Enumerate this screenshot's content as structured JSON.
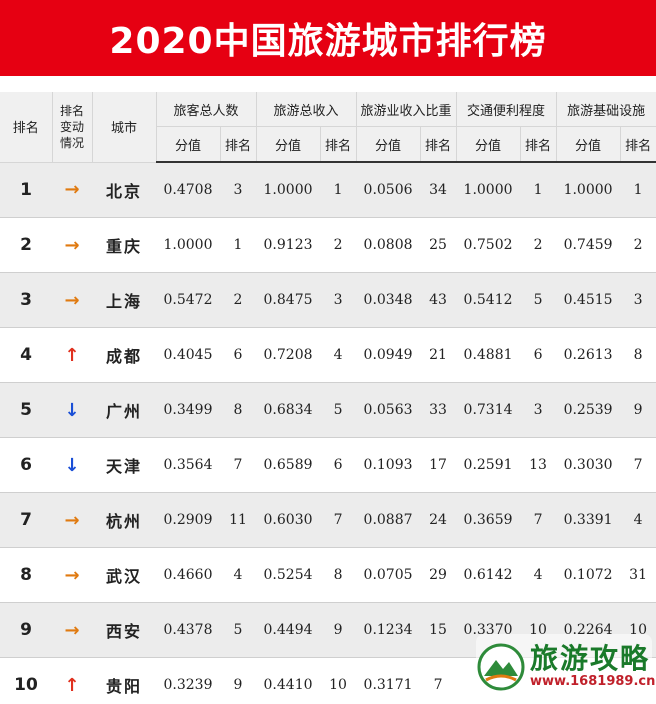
{
  "title": "2020中国旅游城市排行榜",
  "headers": {
    "rank": "排名",
    "change": "排名变动情况",
    "change_lines": [
      "排名",
      "变动",
      "情况"
    ],
    "city": "城市",
    "groups": [
      "旅客总人数",
      "旅游总收入",
      "旅游业收入比重",
      "交通便利程度",
      "旅游基础设施"
    ],
    "score": "分值",
    "sub_rank": "排名"
  },
  "rows": [
    {
      "rank": "1",
      "change": "flat",
      "arrow": "→",
      "city": "北京",
      "cells": [
        "0.4708",
        "3",
        "1.0000",
        "1",
        "0.0506",
        "34",
        "1.0000",
        "1",
        "1.0000",
        "1"
      ]
    },
    {
      "rank": "2",
      "change": "flat",
      "arrow": "→",
      "city": "重庆",
      "cells": [
        "1.0000",
        "1",
        "0.9123",
        "2",
        "0.0808",
        "25",
        "0.7502",
        "2",
        "0.7459",
        "2"
      ]
    },
    {
      "rank": "3",
      "change": "flat",
      "arrow": "→",
      "city": "上海",
      "cells": [
        "0.5472",
        "2",
        "0.8475",
        "3",
        "0.0348",
        "43",
        "0.5412",
        "5",
        "0.4515",
        "3"
      ]
    },
    {
      "rank": "4",
      "change": "up",
      "arrow": "↑",
      "city": "成都",
      "cells": [
        "0.4045",
        "6",
        "0.7208",
        "4",
        "0.0949",
        "21",
        "0.4881",
        "6",
        "0.2613",
        "8"
      ]
    },
    {
      "rank": "5",
      "change": "down",
      "arrow": "↓",
      "city": "广州",
      "cells": [
        "0.3499",
        "8",
        "0.6834",
        "5",
        "0.0563",
        "33",
        "0.7314",
        "3",
        "0.2539",
        "9"
      ]
    },
    {
      "rank": "6",
      "change": "down",
      "arrow": "↓",
      "city": "天津",
      "cells": [
        "0.3564",
        "7",
        "0.6589",
        "6",
        "0.1093",
        "17",
        "0.2591",
        "13",
        "0.3030",
        "7"
      ]
    },
    {
      "rank": "7",
      "change": "flat",
      "arrow": "→",
      "city": "杭州",
      "cells": [
        "0.2909",
        "11",
        "0.6030",
        "7",
        "0.0887",
        "24",
        "0.3659",
        "7",
        "0.3391",
        "4"
      ]
    },
    {
      "rank": "8",
      "change": "flat",
      "arrow": "→",
      "city": "武汉",
      "cells": [
        "0.4660",
        "4",
        "0.5254",
        "8",
        "0.0705",
        "29",
        "0.6142",
        "4",
        "0.1072",
        "31"
      ]
    },
    {
      "rank": "9",
      "change": "flat",
      "arrow": "→",
      "city": "西安",
      "cells": [
        "0.4378",
        "5",
        "0.4494",
        "9",
        "0.1234",
        "15",
        "0.3370",
        "10",
        "0.2264",
        "10"
      ]
    },
    {
      "rank": "10",
      "change": "up",
      "arrow": "↑",
      "city": "贵阳",
      "cells": [
        "0.3239",
        "9",
        "0.4410",
        "10",
        "0.3171",
        "7",
        "",
        "",
        "",
        ""
      ]
    }
  ],
  "watermark": {
    "name": "旅游攻略",
    "url": "www.1681989.cn"
  },
  "colors": {
    "banner": "#e60012",
    "flat_arrow": "#e07a10",
    "up_arrow": "#e0301e",
    "down_arrow": "#1a4fd6"
  }
}
